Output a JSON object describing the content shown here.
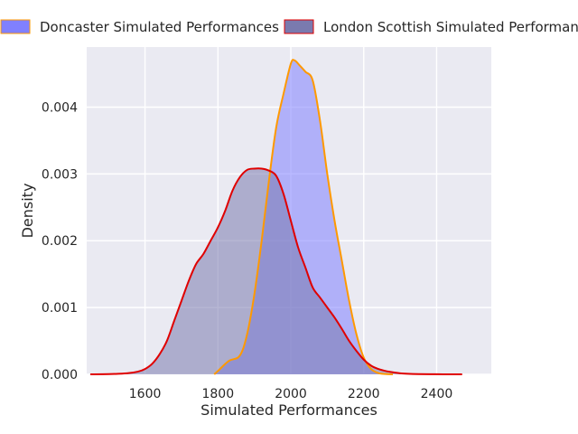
{
  "chart_data": {
    "type": "area",
    "title": "",
    "xlabel": "Simulated Performances",
    "ylabel": "Density",
    "xlim": [
      1440,
      2550
    ],
    "ylim": [
      0,
      0.0049
    ],
    "x_ticks": [
      1600,
      1800,
      2000,
      2200,
      2400
    ],
    "y_ticks": [
      0.0,
      0.001,
      0.002,
      0.003,
      0.004
    ],
    "y_tick_labels": [
      "0.000",
      "0.001",
      "0.002",
      "0.003",
      "0.004"
    ],
    "grid": true,
    "legend_position": "top",
    "series": [
      {
        "name": "Doncaster Simulated Performances",
        "fill_color": "#8080ff",
        "line_color": "#ff9900",
        "x": [
          1790,
          1800,
          1830,
          1860,
          1880,
          1900,
          1920,
          1940,
          1960,
          1980,
          2000,
          2010,
          2025,
          2040,
          2060,
          2080,
          2100,
          2120,
          2140,
          2160,
          2180,
          2200,
          2220,
          2240,
          2260,
          2280
        ],
        "y": [
          0,
          5e-05,
          0.0002,
          0.00028,
          0.0006,
          0.0012,
          0.002,
          0.0029,
          0.0037,
          0.0042,
          0.00465,
          0.0047,
          0.00462,
          0.00453,
          0.0044,
          0.0038,
          0.003,
          0.0023,
          0.0017,
          0.0011,
          0.0006,
          0.00025,
          8e-05,
          2e-05,
          5e-06,
          0
        ]
      },
      {
        "name": "London Scottish Simulated Performances",
        "fill_color": "#7a7aaf",
        "line_color": "#e00000",
        "x": [
          1450,
          1500,
          1550,
          1580,
          1600,
          1620,
          1640,
          1660,
          1680,
          1700,
          1720,
          1740,
          1760,
          1780,
          1800,
          1820,
          1840,
          1860,
          1880,
          1900,
          1920,
          1940,
          1960,
          1980,
          2000,
          2020,
          2040,
          2060,
          2080,
          2100,
          2120,
          2140,
          2160,
          2180,
          2200,
          2220,
          2240,
          2260,
          2280,
          2300,
          2320,
          2350,
          2400,
          2450,
          2470
        ],
        "y": [
          0,
          3e-06,
          1.5e-05,
          4e-05,
          8e-05,
          0.00016,
          0.0003,
          0.0005,
          0.0008,
          0.0011,
          0.0014,
          0.00165,
          0.0018,
          0.002,
          0.0022,
          0.00245,
          0.00275,
          0.00295,
          0.00306,
          0.00308,
          0.00308,
          0.00305,
          0.00297,
          0.0027,
          0.0023,
          0.0019,
          0.0016,
          0.0013,
          0.00115,
          0.001,
          0.00085,
          0.00068,
          0.0005,
          0.00035,
          0.00022,
          0.00013,
          8e-05,
          5e-05,
          3e-05,
          1.5e-05,
          8e-06,
          3e-06,
          1e-06,
          0,
          0
        ]
      }
    ]
  }
}
